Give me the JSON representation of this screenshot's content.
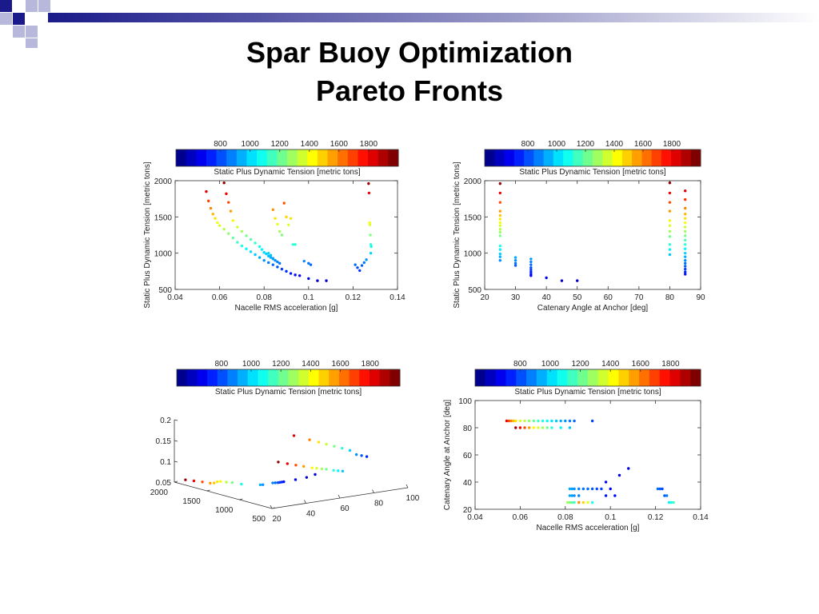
{
  "slide": {
    "title_line1": "Spar Buoy Optimization",
    "title_line2": "Pareto Fronts"
  },
  "colorbar": {
    "ticks": [
      800,
      1000,
      1200,
      1400,
      1600,
      1800
    ],
    "label": "Static Plus Dynamic Tension [metric tons]",
    "range": [
      500,
      2000
    ],
    "colors": [
      "#00008f",
      "#0000bf",
      "#0000ef",
      "#0020ff",
      "#0050ff",
      "#0080ff",
      "#00b0ff",
      "#00e0ff",
      "#10ffef",
      "#40ffbf",
      "#70ff8f",
      "#a0ff60",
      "#d0ff30",
      "#ffff00",
      "#ffd000",
      "#ffa000",
      "#ff7000",
      "#ff4000",
      "#ff1000",
      "#df0000",
      "#af0000",
      "#800000"
    ]
  },
  "chart_data": [
    {
      "type": "scatter",
      "xlabel": "Nacelle RMS acceleration [g]",
      "ylabel": "Static Plus Dynamic Tension [metric tons]",
      "xlim": [
        0.04,
        0.14
      ],
      "ylim": [
        500,
        2000
      ],
      "xticks": [
        0.04,
        0.06,
        0.08,
        0.1,
        0.12,
        0.14
      ],
      "yticks": [
        500,
        1000,
        1500,
        2000
      ],
      "color_by": "y",
      "points": [
        [
          0.054,
          1850
        ],
        [
          0.055,
          1720
        ],
        [
          0.056,
          1620
        ],
        [
          0.057,
          1540
        ],
        [
          0.058,
          1480
        ],
        [
          0.059,
          1420
        ],
        [
          0.06,
          1380
        ],
        [
          0.062,
          1330
        ],
        [
          0.064,
          1270
        ],
        [
          0.066,
          1210
        ],
        [
          0.068,
          1150
        ],
        [
          0.07,
          1100
        ],
        [
          0.072,
          1060
        ],
        [
          0.074,
          1020
        ],
        [
          0.076,
          980
        ],
        [
          0.078,
          940
        ],
        [
          0.08,
          900
        ],
        [
          0.082,
          870
        ],
        [
          0.084,
          840
        ],
        [
          0.086,
          810
        ],
        [
          0.088,
          780
        ],
        [
          0.09,
          750
        ],
        [
          0.092,
          720
        ],
        [
          0.094,
          700
        ],
        [
          0.096,
          690
        ],
        [
          0.1,
          650
        ],
        [
          0.104,
          620
        ],
        [
          0.108,
          620
        ],
        [
          0.062,
          1970
        ],
        [
          0.063,
          1820
        ],
        [
          0.064,
          1700
        ],
        [
          0.065,
          1580
        ],
        [
          0.066,
          1450
        ],
        [
          0.068,
          1360
        ],
        [
          0.07,
          1300
        ],
        [
          0.072,
          1240
        ],
        [
          0.074,
          1190
        ],
        [
          0.076,
          1140
        ],
        [
          0.078,
          1090
        ],
        [
          0.079,
          1050
        ],
        [
          0.08,
          1010
        ],
        [
          0.081,
          990
        ],
        [
          0.082,
          960
        ],
        [
          0.083,
          940
        ],
        [
          0.084,
          920
        ],
        [
          0.085,
          900
        ],
        [
          0.086,
          880
        ],
        [
          0.087,
          860
        ],
        [
          0.082,
          1000
        ],
        [
          0.083,
          970
        ],
        [
          0.084,
          930
        ],
        [
          0.084,
          1600
        ],
        [
          0.085,
          1480
        ],
        [
          0.086,
          1400
        ],
        [
          0.087,
          1300
        ],
        [
          0.088,
          1250
        ],
        [
          0.089,
          1690
        ],
        [
          0.09,
          1500
        ],
        [
          0.091,
          1390
        ],
        [
          0.092,
          1480
        ],
        [
          0.093,
          1120
        ],
        [
          0.094,
          1120
        ],
        [
          0.098,
          890
        ],
        [
          0.1,
          860
        ],
        [
          0.101,
          840
        ],
        [
          0.121,
          840
        ],
        [
          0.122,
          800
        ],
        [
          0.123,
          760
        ],
        [
          0.124,
          830
        ],
        [
          0.125,
          870
        ],
        [
          0.126,
          910
        ],
        [
          0.127,
          1960
        ],
        [
          0.1272,
          1830
        ],
        [
          0.1275,
          1420
        ],
        [
          0.1276,
          1390
        ],
        [
          0.1278,
          1250
        ],
        [
          0.128,
          1120
        ],
        [
          0.1282,
          1090
        ],
        [
          0.128,
          1000
        ]
      ]
    },
    {
      "type": "scatter",
      "xlabel": "Catenary Angle at Anchor [deg]",
      "ylabel": "Static Plus Dynamic Tension [metric tons]",
      "xlim": [
        20,
        90
      ],
      "ylim": [
        500,
        2000
      ],
      "xticks": [
        20,
        30,
        40,
        50,
        60,
        70,
        80,
        90
      ],
      "yticks": [
        500,
        1000,
        1500,
        2000
      ],
      "color_by": "y",
      "points": [
        [
          25,
          1960
        ],
        [
          25,
          1830
        ],
        [
          25,
          1700
        ],
        [
          25,
          1580
        ],
        [
          25,
          1520
        ],
        [
          25,
          1470
        ],
        [
          25,
          1420
        ],
        [
          25,
          1380
        ],
        [
          25,
          1330
        ],
        [
          25,
          1290
        ],
        [
          25,
          1240
        ],
        [
          25,
          1100
        ],
        [
          25,
          1050
        ],
        [
          25,
          990
        ],
        [
          25,
          950
        ],
        [
          25,
          900
        ],
        [
          30,
          940
        ],
        [
          30,
          900
        ],
        [
          30,
          860
        ],
        [
          30,
          830
        ],
        [
          35,
          920
        ],
        [
          35,
          880
        ],
        [
          35,
          840
        ],
        [
          35,
          800
        ],
        [
          35,
          770
        ],
        [
          35,
          740
        ],
        [
          35,
          710
        ],
        [
          35,
          690
        ],
        [
          40,
          660
        ],
        [
          45,
          620
        ],
        [
          50,
          620
        ],
        [
          80,
          1970
        ],
        [
          80,
          1830
        ],
        [
          80,
          1700
        ],
        [
          80,
          1580
        ],
        [
          80,
          1450
        ],
        [
          80,
          1380
        ],
        [
          80,
          1300
        ],
        [
          80,
          1230
        ],
        [
          80,
          1120
        ],
        [
          80,
          1050
        ],
        [
          80,
          980
        ],
        [
          85,
          1860
        ],
        [
          85,
          1740
        ],
        [
          85,
          1620
        ],
        [
          85,
          1540
        ],
        [
          85,
          1480
        ],
        [
          85,
          1420
        ],
        [
          85,
          1360
        ],
        [
          85,
          1300
        ],
        [
          85,
          1240
        ],
        [
          85,
          1180
        ],
        [
          85,
          1120
        ],
        [
          85,
          1060
        ],
        [
          85,
          1000
        ],
        [
          85,
          950
        ],
        [
          85,
          900
        ],
        [
          85,
          860
        ],
        [
          85,
          820
        ],
        [
          85,
          780
        ],
        [
          85,
          740
        ],
        [
          85,
          710
        ]
      ]
    },
    {
      "type": "scatter",
      "projection": "3d",
      "xlabel": "",
      "ylabel": "",
      "zlabel": "",
      "axis1_ticks": [
        20,
        40,
        60,
        80,
        100
      ],
      "axis2_ticks": [
        500,
        1000,
        1500,
        2000
      ],
      "zticks": [
        0.05,
        0.1,
        0.15,
        0.2
      ],
      "axis1_range": [
        20,
        100
      ],
      "axis2_range": [
        500,
        2000
      ],
      "zlim": [
        0.05,
        0.2
      ],
      "color_by": "axis2",
      "points": [
        [
          25,
          1960,
          0.054
        ],
        [
          25,
          1830,
          0.057
        ],
        [
          25,
          1700,
          0.06
        ],
        [
          25,
          1580,
          0.062
        ],
        [
          25,
          1520,
          0.065
        ],
        [
          25,
          1470,
          0.07
        ],
        [
          25,
          1420,
          0.073
        ],
        [
          25,
          1330,
          0.075
        ],
        [
          25,
          1240,
          0.078
        ],
        [
          25,
          1100,
          0.08
        ],
        [
          30,
          940,
          0.082
        ],
        [
          30,
          900,
          0.084
        ],
        [
          35,
          880,
          0.086
        ],
        [
          35,
          840,
          0.088
        ],
        [
          35,
          800,
          0.09
        ],
        [
          35,
          770,
          0.092
        ],
        [
          35,
          740,
          0.094
        ],
        [
          35,
          710,
          0.096
        ],
        [
          40,
          660,
          0.1
        ],
        [
          45,
          620,
          0.104
        ],
        [
          50,
          620,
          0.108
        ],
        [
          80,
          1970,
          0.062
        ],
        [
          80,
          1830,
          0.064
        ],
        [
          80,
          1700,
          0.066
        ],
        [
          80,
          1580,
          0.068
        ],
        [
          80,
          1450,
          0.07
        ],
        [
          80,
          1380,
          0.072
        ],
        [
          80,
          1300,
          0.074
        ],
        [
          80,
          1230,
          0.076
        ],
        [
          80,
          1120,
          0.078
        ],
        [
          80,
          1050,
          0.08
        ],
        [
          80,
          980,
          0.082
        ],
        [
          85,
          1860,
          0.127
        ],
        [
          85,
          1620,
          0.1272
        ],
        [
          85,
          1480,
          0.1275
        ],
        [
          85,
          1360,
          0.1276
        ],
        [
          85,
          1240,
          0.1278
        ],
        [
          85,
          1120,
          0.128
        ],
        [
          85,
          1000,
          0.128
        ],
        [
          85,
          900,
          0.122
        ],
        [
          85,
          820,
          0.123
        ],
        [
          85,
          740,
          0.124
        ]
      ]
    },
    {
      "type": "scatter",
      "xlabel": "Nacelle RMS acceleration [g]",
      "ylabel": "Catenary Angle at Anchor [deg]",
      "xlim": [
        0.04,
        0.14
      ],
      "ylim": [
        20,
        100
      ],
      "xticks": [
        0.04,
        0.06,
        0.08,
        0.1,
        0.12,
        0.14
      ],
      "yticks": [
        20,
        40,
        60,
        80,
        100
      ],
      "color_by": "tension",
      "points": [
        [
          0.054,
          85,
          1850
        ],
        [
          0.055,
          85,
          1720
        ],
        [
          0.056,
          85,
          1620
        ],
        [
          0.057,
          85,
          1540
        ],
        [
          0.058,
          85,
          1480
        ],
        [
          0.06,
          85,
          1380
        ],
        [
          0.062,
          85,
          1330
        ],
        [
          0.064,
          85,
          1270
        ],
        [
          0.066,
          85,
          1210
        ],
        [
          0.068,
          85,
          1150
        ],
        [
          0.07,
          85,
          1100
        ],
        [
          0.072,
          85,
          1060
        ],
        [
          0.074,
          85,
          1020
        ],
        [
          0.076,
          85,
          980
        ],
        [
          0.078,
          85,
          940
        ],
        [
          0.08,
          85,
          900
        ],
        [
          0.082,
          85,
          870
        ],
        [
          0.084,
          85,
          840
        ],
        [
          0.092,
          85,
          780
        ],
        [
          0.058,
          80,
          1970
        ],
        [
          0.06,
          80,
          1830
        ],
        [
          0.062,
          80,
          1700
        ],
        [
          0.064,
          80,
          1580
        ],
        [
          0.066,
          80,
          1450
        ],
        [
          0.068,
          80,
          1380
        ],
        [
          0.07,
          80,
          1300
        ],
        [
          0.072,
          80,
          1230
        ],
        [
          0.074,
          80,
          1120
        ],
        [
          0.078,
          80,
          1050
        ],
        [
          0.082,
          80,
          980
        ],
        [
          0.082,
          35,
          940
        ],
        [
          0.083,
          35,
          920
        ],
        [
          0.084,
          35,
          900
        ],
        [
          0.086,
          35,
          880
        ],
        [
          0.088,
          35,
          860
        ],
        [
          0.09,
          35,
          840
        ],
        [
          0.092,
          35,
          820
        ],
        [
          0.094,
          35,
          800
        ],
        [
          0.096,
          35,
          780
        ],
        [
          0.082,
          30,
          940
        ],
        [
          0.083,
          30,
          920
        ],
        [
          0.084,
          30,
          900
        ],
        [
          0.086,
          30,
          880
        ],
        [
          0.081,
          25,
          1300
        ],
        [
          0.082,
          25,
          1250
        ],
        [
          0.083,
          25,
          1200
        ],
        [
          0.084,
          25,
          1150
        ],
        [
          0.086,
          25,
          1600
        ],
        [
          0.088,
          25,
          1500
        ],
        [
          0.09,
          25,
          1400
        ],
        [
          0.092,
          25,
          1100
        ],
        [
          0.098,
          40,
          700
        ],
        [
          0.1,
          35,
          680
        ],
        [
          0.104,
          45,
          660
        ],
        [
          0.108,
          50,
          640
        ],
        [
          0.098,
          30,
          720
        ],
        [
          0.102,
          30,
          700
        ],
        [
          0.121,
          35,
          840
        ],
        [
          0.122,
          35,
          820
        ],
        [
          0.123,
          35,
          800
        ],
        [
          0.124,
          30,
          830
        ],
        [
          0.125,
          30,
          870
        ],
        [
          0.126,
          25,
          1050
        ],
        [
          0.127,
          25,
          1100
        ],
        [
          0.128,
          25,
          1150
        ]
      ]
    }
  ]
}
